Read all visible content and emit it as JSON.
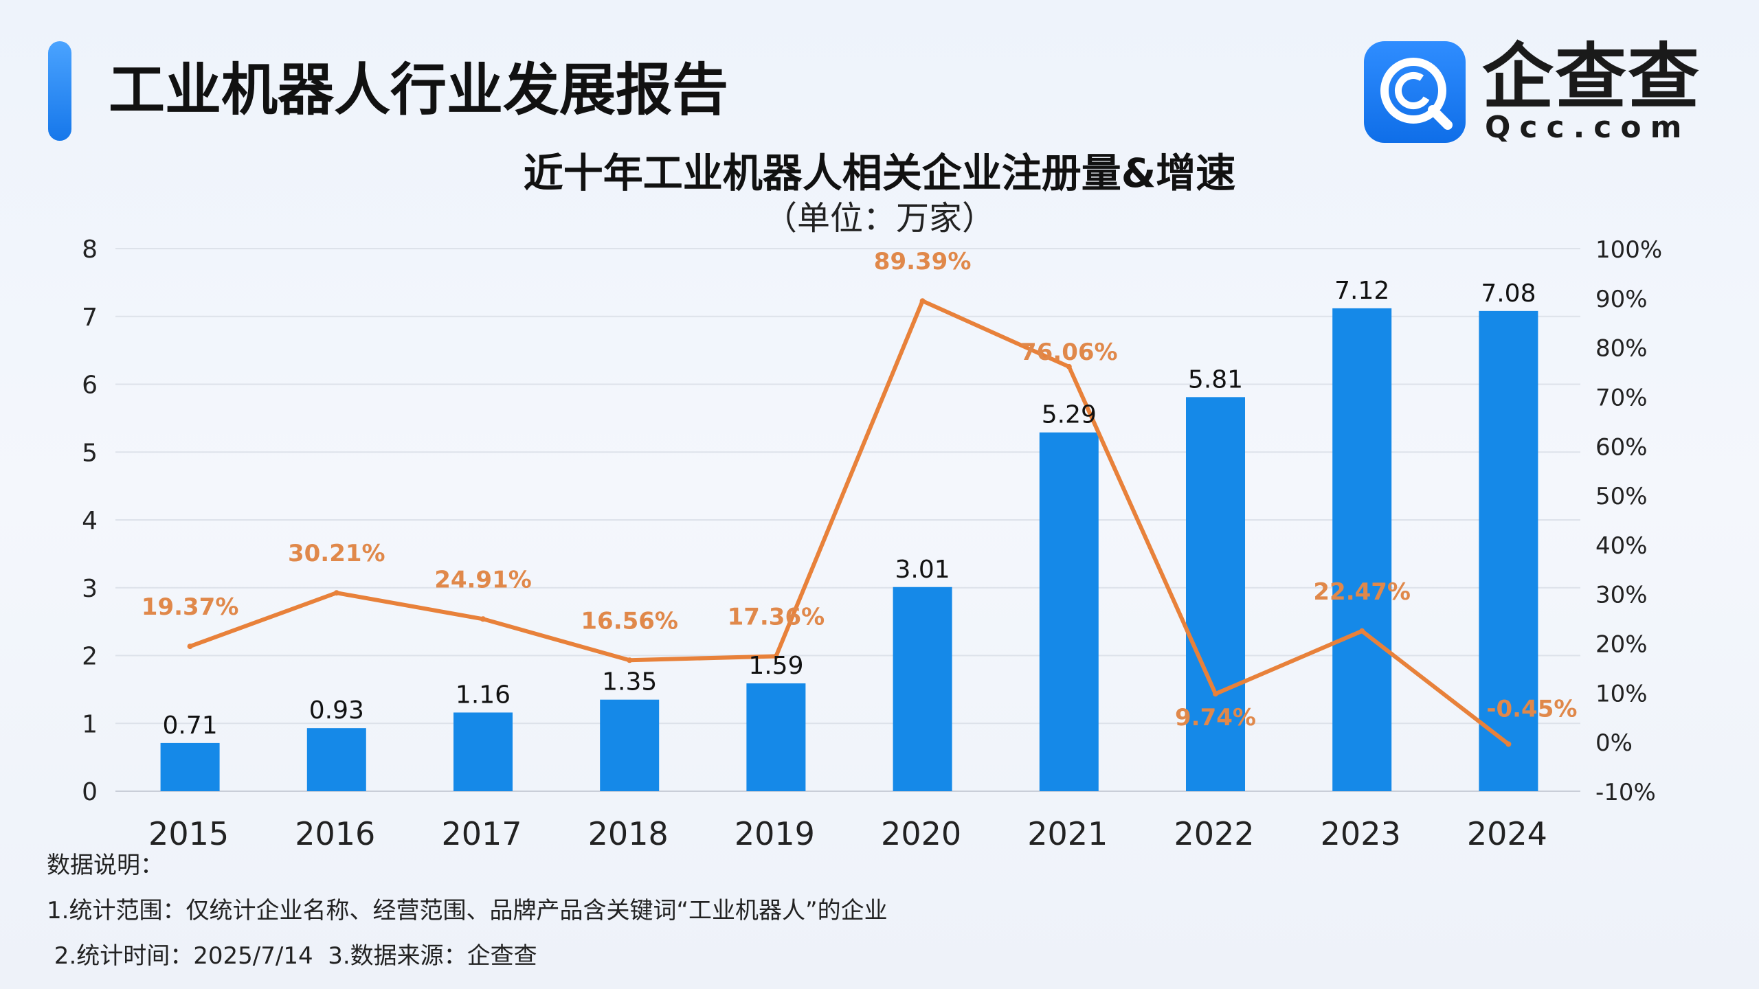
{
  "header": {
    "title": "工业机器人行业发展报告",
    "accent_color": "#1677ea"
  },
  "logo": {
    "name": "企查查",
    "domain": "Qcc.com",
    "icon": "qcc-logo-icon",
    "color": "#1677ea"
  },
  "chart_data": {
    "type": "bar",
    "title": "近十年工业机器人相关企业注册量&增速",
    "subtitle": "（单位：万家）",
    "categories": [
      "2015",
      "2016",
      "2017",
      "2018",
      "2019",
      "2020",
      "2021",
      "2022",
      "2023",
      "2024"
    ],
    "bar_labels": [
      "0.71",
      "0.93",
      "1.16",
      "1.35",
      "1.59",
      "3.01",
      "5.29",
      "5.81",
      "7.12",
      "7.08"
    ],
    "line_labels": [
      "19.37%",
      "30.21%",
      "24.91%",
      "16.56%",
      "17.36%",
      "89.39%",
      "76.06%",
      "9.74%",
      "22.47%",
      "-0.45%"
    ],
    "series": [
      {
        "type": "bar",
        "axis": "left",
        "color": "#1589e8",
        "values": [
          0.71,
          0.93,
          1.16,
          1.35,
          1.59,
          3.01,
          5.29,
          5.81,
          7.12,
          7.08
        ]
      },
      {
        "type": "line",
        "axis": "right",
        "color": "#e8813a",
        "values": [
          19.37,
          30.21,
          24.91,
          16.56,
          17.36,
          89.39,
          76.06,
          9.74,
          22.47,
          -0.45
        ]
      }
    ],
    "y_left": {
      "min": 0,
      "max": 8,
      "ticks": [
        "0",
        "1",
        "2",
        "3",
        "4",
        "5",
        "6",
        "7",
        "8"
      ]
    },
    "y_right": {
      "min": -10,
      "max": 100,
      "ticks": [
        "-10%",
        "0%",
        "10%",
        "20%",
        "30%",
        "40%",
        "50%",
        "60%",
        "70%",
        "80%",
        "90%",
        "100%"
      ]
    },
    "grid": true,
    "legend": "none"
  },
  "notes": {
    "heading": "数据说明：",
    "line1": "1.统计范围：仅统计企业名称、经营范围、品牌产品含关键词“工业机器人”的企业",
    "line2": " 2.统计时间：2025/7/14  3.数据来源：企查查"
  }
}
